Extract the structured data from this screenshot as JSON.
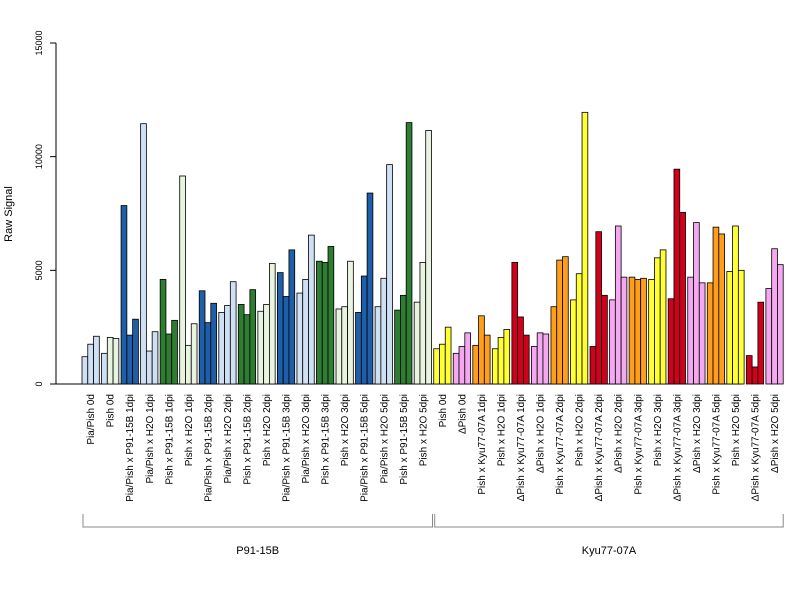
{
  "chart_data": {
    "type": "bar",
    "ylabel": "Raw Signal",
    "ylim": [
      0,
      15000
    ],
    "yticks": [
      "0",
      "5000",
      "10000",
      "15000"
    ],
    "grid": false,
    "groups": [
      {
        "label": "Pia/Pish 0d",
        "values": [
          1200,
          1750,
          2100
        ],
        "colors": [
          "#cfe0f5",
          "#cfe0f5",
          "#cfe0f5"
        ]
      },
      {
        "label": "Pish 0d",
        "values": [
          1350,
          2050,
          2000
        ],
        "colors": [
          "#cfe0f5",
          "#e8f4e0",
          "#e8f4e0"
        ]
      },
      {
        "label": "Pia/Pish x P91-15B 1dpi",
        "values": [
          7850,
          2150,
          2850
        ],
        "colors": [
          "#1f5ea8",
          "#1f5ea8",
          "#1f5ea8"
        ]
      },
      {
        "label": "Pia/Pish x H2O 1dpi",
        "values": [
          11450,
          1450,
          2300
        ],
        "colors": [
          "#cfe0f5",
          "#cfe0f5",
          "#cfe0f5"
        ]
      },
      {
        "label": "Pish x P91-15B 1dpi",
        "values": [
          4600,
          2200,
          2800
        ],
        "colors": [
          "#2e7d32",
          "#2e7d32",
          "#2e7d32"
        ]
      },
      {
        "label": "Pish x H2O 1dpi",
        "values": [
          9150,
          1700,
          2650
        ],
        "colors": [
          "#e8f4e0",
          "#e8f4e0",
          "#e8f4e0"
        ]
      },
      {
        "label": "Pia/Pish x P91-15B 2dpi",
        "values": [
          4100,
          2700,
          3550
        ],
        "colors": [
          "#1f5ea8",
          "#1f5ea8",
          "#1f5ea8"
        ]
      },
      {
        "label": "Pia/Pish x H2O 2dpi",
        "values": [
          3150,
          3450,
          4500
        ],
        "colors": [
          "#cfe0f5",
          "#cfe0f5",
          "#cfe0f5"
        ]
      },
      {
        "label": "Pish x P91-15B 2dpi",
        "values": [
          3500,
          3050,
          4150
        ],
        "colors": [
          "#2e7d32",
          "#2e7d32",
          "#2e7d32"
        ]
      },
      {
        "label": "Pish x H2O 2dpi",
        "values": [
          3200,
          3500,
          5300
        ],
        "colors": [
          "#e8f4e0",
          "#e8f4e0",
          "#e8f4e0"
        ]
      },
      {
        "label": "Pia/Pish x P91-15B 3dpi",
        "values": [
          4900,
          3850,
          5900
        ],
        "colors": [
          "#1f5ea8",
          "#1f5ea8",
          "#1f5ea8"
        ]
      },
      {
        "label": "Pia/Pish x H2O 3dpi",
        "values": [
          4000,
          4600,
          6550
        ],
        "colors": [
          "#cfe0f5",
          "#cfe0f5",
          "#cfe0f5"
        ]
      },
      {
        "label": "Pish x P91-15B 3dpi",
        "values": [
          5400,
          5350,
          6050
        ],
        "colors": [
          "#2e7d32",
          "#2e7d32",
          "#2e7d32"
        ]
      },
      {
        "label": "Pish x H2O 3dpi",
        "values": [
          3300,
          3400,
          5400
        ],
        "colors": [
          "#e8f4e0",
          "#e8f4e0",
          "#e8f4e0"
        ]
      },
      {
        "label": "Pia/Pish x P91-15B 5dpi",
        "values": [
          3150,
          4750,
          8400
        ],
        "colors": [
          "#1f5ea8",
          "#1f5ea8",
          "#1f5ea8"
        ]
      },
      {
        "label": "Pia/Pish x H2O 5dpi",
        "values": [
          3400,
          4650,
          9650
        ],
        "colors": [
          "#cfe0f5",
          "#cfe0f5",
          "#cfe0f5"
        ]
      },
      {
        "label": "Pish x P91-15B 5dpi",
        "values": [
          3250,
          3900,
          11500
        ],
        "colors": [
          "#2e7d32",
          "#2e7d32",
          "#2e7d32"
        ]
      },
      {
        "label": "Pish x H2O 5dpi",
        "values": [
          3600,
          5350,
          11150
        ],
        "colors": [
          "#e8f4e0",
          "#e8f4e0",
          "#e8f4e0"
        ]
      },
      {
        "label": "Pish 0d",
        "values": [
          1550,
          1750,
          2500
        ],
        "colors": [
          "#ffff33",
          "#ffff33",
          "#ffff33"
        ]
      },
      {
        "label": "ΔPish 0d",
        "values": [
          1350,
          1650,
          2250
        ],
        "colors": [
          "#f4a8f0",
          "#f4a8f0",
          "#f4a8f0"
        ]
      },
      {
        "label": "Pish x Kyu77-07A 1dpi",
        "values": [
          1700,
          3000,
          2150
        ],
        "colors": [
          "#ff9e1b",
          "#ff9e1b",
          "#ff9e1b"
        ]
      },
      {
        "label": "Pish x H2O 1dpi",
        "values": [
          1550,
          2050,
          2400
        ],
        "colors": [
          "#ffff33",
          "#ffff33",
          "#ffff33"
        ]
      },
      {
        "label": "ΔPish x Kyu77-07A 1dpi",
        "values": [
          5350,
          2950,
          2150
        ],
        "colors": [
          "#d0021b",
          "#d0021b",
          "#d0021b"
        ]
      },
      {
        "label": "ΔPish x H2O 1dpi",
        "values": [
          1650,
          2250,
          2200
        ],
        "colors": [
          "#f4a8f0",
          "#f4a8f0",
          "#f4a8f0"
        ]
      },
      {
        "label": "Pish x Kyu77-07A 2dpi",
        "values": [
          3400,
          5450,
          5600
        ],
        "colors": [
          "#ff9e1b",
          "#ff9e1b",
          "#ff9e1b"
        ]
      },
      {
        "label": "Pish x H2O 2dpi",
        "values": [
          3700,
          4850,
          11950
        ],
        "colors": [
          "#ffff33",
          "#ffff33",
          "#ffff33"
        ]
      },
      {
        "label": "ΔPish x Kyu77-07A 2dpi",
        "values": [
          1650,
          6700,
          3900
        ],
        "colors": [
          "#d0021b",
          "#d0021b",
          "#d0021b"
        ]
      },
      {
        "label": "ΔPish x H2O 2dpi",
        "values": [
          3700,
          6950,
          4700
        ],
        "colors": [
          "#f4a8f0",
          "#f4a8f0",
          "#f4a8f0"
        ]
      },
      {
        "label": "Pish x Kyu77-07A 3dpi",
        "values": [
          4700,
          4600,
          4650
        ],
        "colors": [
          "#ff9e1b",
          "#ff9e1b",
          "#ff9e1b"
        ]
      },
      {
        "label": "Pish x H2O 3dpi",
        "values": [
          4600,
          5550,
          5900
        ],
        "colors": [
          "#ffff33",
          "#ffff33",
          "#ffff33"
        ]
      },
      {
        "label": "ΔPish x Kyu77-07A 3dpi",
        "values": [
          3750,
          9450,
          7550
        ],
        "colors": [
          "#d0021b",
          "#d0021b",
          "#d0021b"
        ]
      },
      {
        "label": "ΔPish x H2O 3dpi",
        "values": [
          4700,
          7100,
          4450
        ],
        "colors": [
          "#f4a8f0",
          "#f4a8f0",
          "#f4a8f0"
        ]
      },
      {
        "label": "Pish x Kyu77-07A 5dpi",
        "values": [
          4450,
          6900,
          6600
        ],
        "colors": [
          "#ff9e1b",
          "#ff9e1b",
          "#ff9e1b"
        ]
      },
      {
        "label": "Pish x H2O 5dpi",
        "values": [
          4950,
          6950,
          5000
        ],
        "colors": [
          "#ffff33",
          "#ffff33",
          "#ffff33"
        ]
      },
      {
        "label": "ΔPish x Kyu77-07A 5dpi",
        "values": [
          1250,
          750,
          3600
        ],
        "colors": [
          "#d0021b",
          "#d0021b",
          "#d0021b"
        ]
      },
      {
        "label": "ΔPish x H2O 5dpi",
        "values": [
          4200,
          5950,
          5250
        ],
        "colors": [
          "#f4a8f0",
          "#f4a8f0",
          "#f4a8f0"
        ]
      }
    ],
    "brackets": [
      {
        "label": "P91-15B",
        "from": 0,
        "to": 17
      },
      {
        "label": "Kyu77-07A",
        "from": 18,
        "to": 35
      }
    ]
  }
}
